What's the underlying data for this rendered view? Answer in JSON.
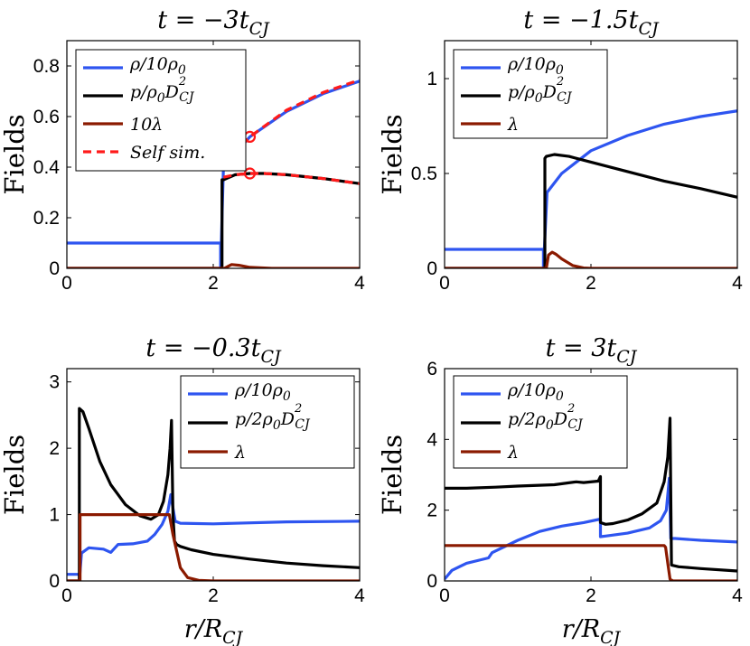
{
  "chart_data": [
    {
      "type": "line",
      "title": "t = −3t_CJ",
      "title_parts": [
        "t = −3t",
        "CJ"
      ],
      "xlabel": "",
      "ylabel": "Fields",
      "xlim": [
        0,
        4
      ],
      "ylim": [
        0,
        0.9
      ],
      "xticks": [
        0,
        2,
        4
      ],
      "xtick_labels": [
        "0",
        "2",
        "4"
      ],
      "yticks": [
        0,
        0.2,
        0.4,
        0.6,
        0.8
      ],
      "ytick_labels": [
        "0",
        "0.2",
        "0.4",
        "0.6",
        "0.8"
      ],
      "legend_position": "top-left",
      "legend": [
        {
          "label": "ρ/10ρ0",
          "color": "#2e55f0"
        },
        {
          "label": "p/ρ0D²CJ",
          "color": "#000000"
        },
        {
          "label": "10λ",
          "color": "#8b1a00"
        },
        {
          "label": "Self sim.",
          "color": "#ff1a1a"
        }
      ],
      "series": [
        {
          "name": "ρ/10ρ0",
          "color": "#2e55f0",
          "x": [
            0,
            2.1,
            2.1,
            2.14,
            2.5,
            3.0,
            3.5,
            4.0
          ],
          "y": [
            0.1,
            0.1,
            0,
            0.4,
            0.52,
            0.62,
            0.69,
            0.74
          ]
        },
        {
          "name": "p/ρ0D²CJ",
          "color": "#000000",
          "x": [
            0,
            2.12,
            2.12,
            2.14,
            2.3,
            2.5,
            2.7,
            3.0,
            3.5,
            4.0
          ],
          "y": [
            0,
            0,
            0.35,
            0.35,
            0.37,
            0.375,
            0.375,
            0.37,
            0.355,
            0.335
          ]
        },
        {
          "name": "10λ",
          "color": "#8b1a00",
          "x": [
            0,
            2.15,
            2.25,
            2.35,
            2.5,
            2.8,
            4.0
          ],
          "y": [
            0,
            0,
            0.015,
            0.012,
            0.004,
            0,
            0
          ]
        },
        {
          "name": "Self sim. density",
          "color": "#ff1a1a",
          "dashed": true,
          "x": [
            2.14,
            2.5,
            3.0,
            3.5,
            4.0
          ],
          "y": [
            0.41,
            0.52,
            0.625,
            0.695,
            0.745
          ]
        },
        {
          "name": "Self sim. pressure",
          "color": "#ff1a1a",
          "dashed": true,
          "x": [
            2.14,
            2.3,
            2.5,
            2.7,
            3.0,
            3.5,
            4.0
          ],
          "y": [
            0.36,
            0.37,
            0.375,
            0.375,
            0.37,
            0.355,
            0.335
          ]
        }
      ],
      "markers": [
        {
          "x": 2.5,
          "y": 0.52
        },
        {
          "x": 2.5,
          "y": 0.375
        }
      ]
    },
    {
      "type": "line",
      "title": "t = −1.5t_CJ",
      "title_parts": [
        "t = −1.5t",
        "CJ"
      ],
      "xlabel": "",
      "ylabel": "Fields",
      "xlim": [
        0,
        4
      ],
      "ylim": [
        0,
        1.2
      ],
      "xticks": [
        0,
        2,
        4
      ],
      "xtick_labels": [
        "0",
        "2",
        "4"
      ],
      "yticks": [
        0,
        0.5,
        1
      ],
      "ytick_labels": [
        "0",
        "0.5",
        "1"
      ],
      "legend_position": "top-left",
      "legend": [
        {
          "label": "ρ/10ρ0",
          "color": "#2e55f0"
        },
        {
          "label": "p/ρ0D²CJ",
          "color": "#000000"
        },
        {
          "label": "λ",
          "color": "#8b1a00"
        }
      ],
      "series": [
        {
          "name": "ρ/10ρ0",
          "color": "#2e55f0",
          "x": [
            0,
            1.35,
            1.35,
            1.4,
            1.6,
            2.0,
            2.5,
            3.0,
            3.5,
            4.0
          ],
          "y": [
            0.1,
            0.1,
            0,
            0.4,
            0.5,
            0.62,
            0.7,
            0.76,
            0.8,
            0.83
          ]
        },
        {
          "name": "p/ρ0D²CJ",
          "color": "#000000",
          "x": [
            0,
            1.37,
            1.37,
            1.39,
            1.5,
            1.7,
            2.0,
            2.5,
            3.0,
            3.5,
            4.0
          ],
          "y": [
            0,
            0,
            0.58,
            0.59,
            0.6,
            0.59,
            0.56,
            0.51,
            0.46,
            0.42,
            0.375
          ]
        },
        {
          "name": "λ",
          "color": "#8b1a00",
          "x": [
            0,
            1.39,
            1.42,
            1.47,
            1.52,
            1.6,
            1.75,
            1.9,
            2.0,
            4.0
          ],
          "y": [
            0,
            0,
            0.07,
            0.085,
            0.075,
            0.05,
            0.015,
            0.002,
            0,
            0
          ]
        }
      ]
    },
    {
      "type": "line",
      "title": "t = −0.3t_CJ",
      "title_parts": [
        "t = −0.3t",
        "CJ"
      ],
      "xlabel": "r/R_CJ",
      "xlabel_parts": [
        "r/R",
        "CJ"
      ],
      "ylabel": "Fields",
      "xlim": [
        0,
        4
      ],
      "ylim": [
        0,
        3.2
      ],
      "xticks": [
        0,
        2,
        4
      ],
      "xtick_labels": [
        "0",
        "2",
        "4"
      ],
      "yticks": [
        0,
        1,
        2,
        3
      ],
      "ytick_labels": [
        "0",
        "1",
        "2",
        "3"
      ],
      "legend_position": "top-right",
      "legend": [
        {
          "label": "ρ/10ρ0",
          "color": "#2e55f0"
        },
        {
          "label": "p/2ρ0D²CJ",
          "color": "#000000"
        },
        {
          "label": "λ",
          "color": "#8b1a00"
        }
      ],
      "series": [
        {
          "name": "ρ/10ρ0",
          "color": "#2e55f0",
          "x": [
            0,
            0.17,
            0.17,
            0.2,
            0.3,
            0.5,
            0.6,
            0.7,
            0.9,
            1.1,
            1.2,
            1.3,
            1.38,
            1.42,
            1.45,
            1.48,
            1.55,
            2.0,
            3.0,
            4.0
          ],
          "y": [
            0.1,
            0.1,
            0,
            0.42,
            0.5,
            0.48,
            0.43,
            0.55,
            0.56,
            0.6,
            0.7,
            0.85,
            1.05,
            1.3,
            1.1,
            0.9,
            0.87,
            0.86,
            0.89,
            0.9
          ]
        },
        {
          "name": "p/2ρ0D²CJ",
          "color": "#000000",
          "x": [
            0,
            0.17,
            0.17,
            0.22,
            0.3,
            0.45,
            0.6,
            0.8,
            1.0,
            1.15,
            1.25,
            1.32,
            1.38,
            1.41,
            1.43,
            1.45,
            1.47,
            1.5,
            1.55,
            1.7,
            2.0,
            2.5,
            3.0,
            3.5,
            4.0
          ],
          "y": [
            0,
            0,
            2.6,
            2.55,
            2.3,
            1.8,
            1.45,
            1.15,
            0.98,
            0.93,
            1.0,
            1.2,
            1.6,
            2.0,
            2.42,
            1.0,
            0.6,
            0.55,
            0.52,
            0.47,
            0.4,
            0.33,
            0.27,
            0.23,
            0.2
          ]
        },
        {
          "name": "λ",
          "color": "#8b1a00",
          "x": [
            0,
            0.18,
            0.18,
            1.4,
            1.45,
            1.55,
            1.65,
            1.8,
            2.0,
            4.0
          ],
          "y": [
            0,
            0,
            1.0,
            1.0,
            0.7,
            0.2,
            0.05,
            0.01,
            0,
            0
          ]
        }
      ]
    },
    {
      "type": "line",
      "title": "t = 3t_CJ",
      "title_parts": [
        "t = 3t",
        "CJ"
      ],
      "xlabel": "r/R_CJ",
      "xlabel_parts": [
        "r/R",
        "CJ"
      ],
      "ylabel": "Fields",
      "xlim": [
        0,
        4
      ],
      "ylim": [
        0,
        6
      ],
      "xticks": [
        0,
        2,
        4
      ],
      "xtick_labels": [
        "0",
        "2",
        "4"
      ],
      "yticks": [
        0,
        2,
        4,
        6
      ],
      "ytick_labels": [
        "0",
        "2",
        "4",
        "6"
      ],
      "legend_position": "top-left",
      "legend": [
        {
          "label": "ρ/10ρ0",
          "color": "#2e55f0"
        },
        {
          "label": "p/2ρ0D²CJ",
          "color": "#000000"
        },
        {
          "label": "λ",
          "color": "#8b1a00"
        }
      ],
      "series": [
        {
          "name": "ρ/10ρ0",
          "color": "#2e55f0",
          "x": [
            0,
            0.1,
            0.3,
            0.5,
            0.6,
            0.65,
            0.8,
            1.0,
            1.3,
            1.6,
            1.9,
            2.13,
            2.13,
            2.2,
            2.5,
            2.8,
            2.95,
            3.03,
            3.07,
            3.09,
            3.15,
            3.5,
            4.0
          ],
          "y": [
            0.05,
            0.3,
            0.5,
            0.6,
            0.65,
            0.8,
            0.95,
            1.15,
            1.4,
            1.55,
            1.65,
            1.75,
            1.25,
            1.27,
            1.35,
            1.5,
            1.7,
            2.0,
            2.9,
            1.2,
            1.2,
            1.15,
            1.1
          ]
        },
        {
          "name": "p/2ρ0D²CJ",
          "color": "#000000",
          "x": [
            0,
            0.3,
            0.7,
            1.0,
            1.5,
            1.8,
            1.9,
            2.1,
            2.13,
            2.13,
            2.2,
            2.3,
            2.5,
            2.7,
            2.9,
            3.0,
            3.05,
            3.08,
            3.1,
            3.2,
            3.5,
            4.0
          ],
          "y": [
            2.62,
            2.62,
            2.65,
            2.68,
            2.72,
            2.8,
            2.78,
            2.82,
            2.95,
            1.65,
            1.6,
            1.62,
            1.72,
            1.9,
            2.2,
            2.8,
            3.5,
            4.6,
            0.45,
            0.4,
            0.35,
            0.28
          ]
        },
        {
          "name": "λ",
          "color": "#8b1a00",
          "x": [
            0,
            2.9,
            3.0,
            3.02,
            3.05,
            3.08,
            3.12,
            4.0
          ],
          "y": [
            1.0,
            1.0,
            1.0,
            0.95,
            0.5,
            0.05,
            0,
            0
          ]
        }
      ]
    }
  ]
}
